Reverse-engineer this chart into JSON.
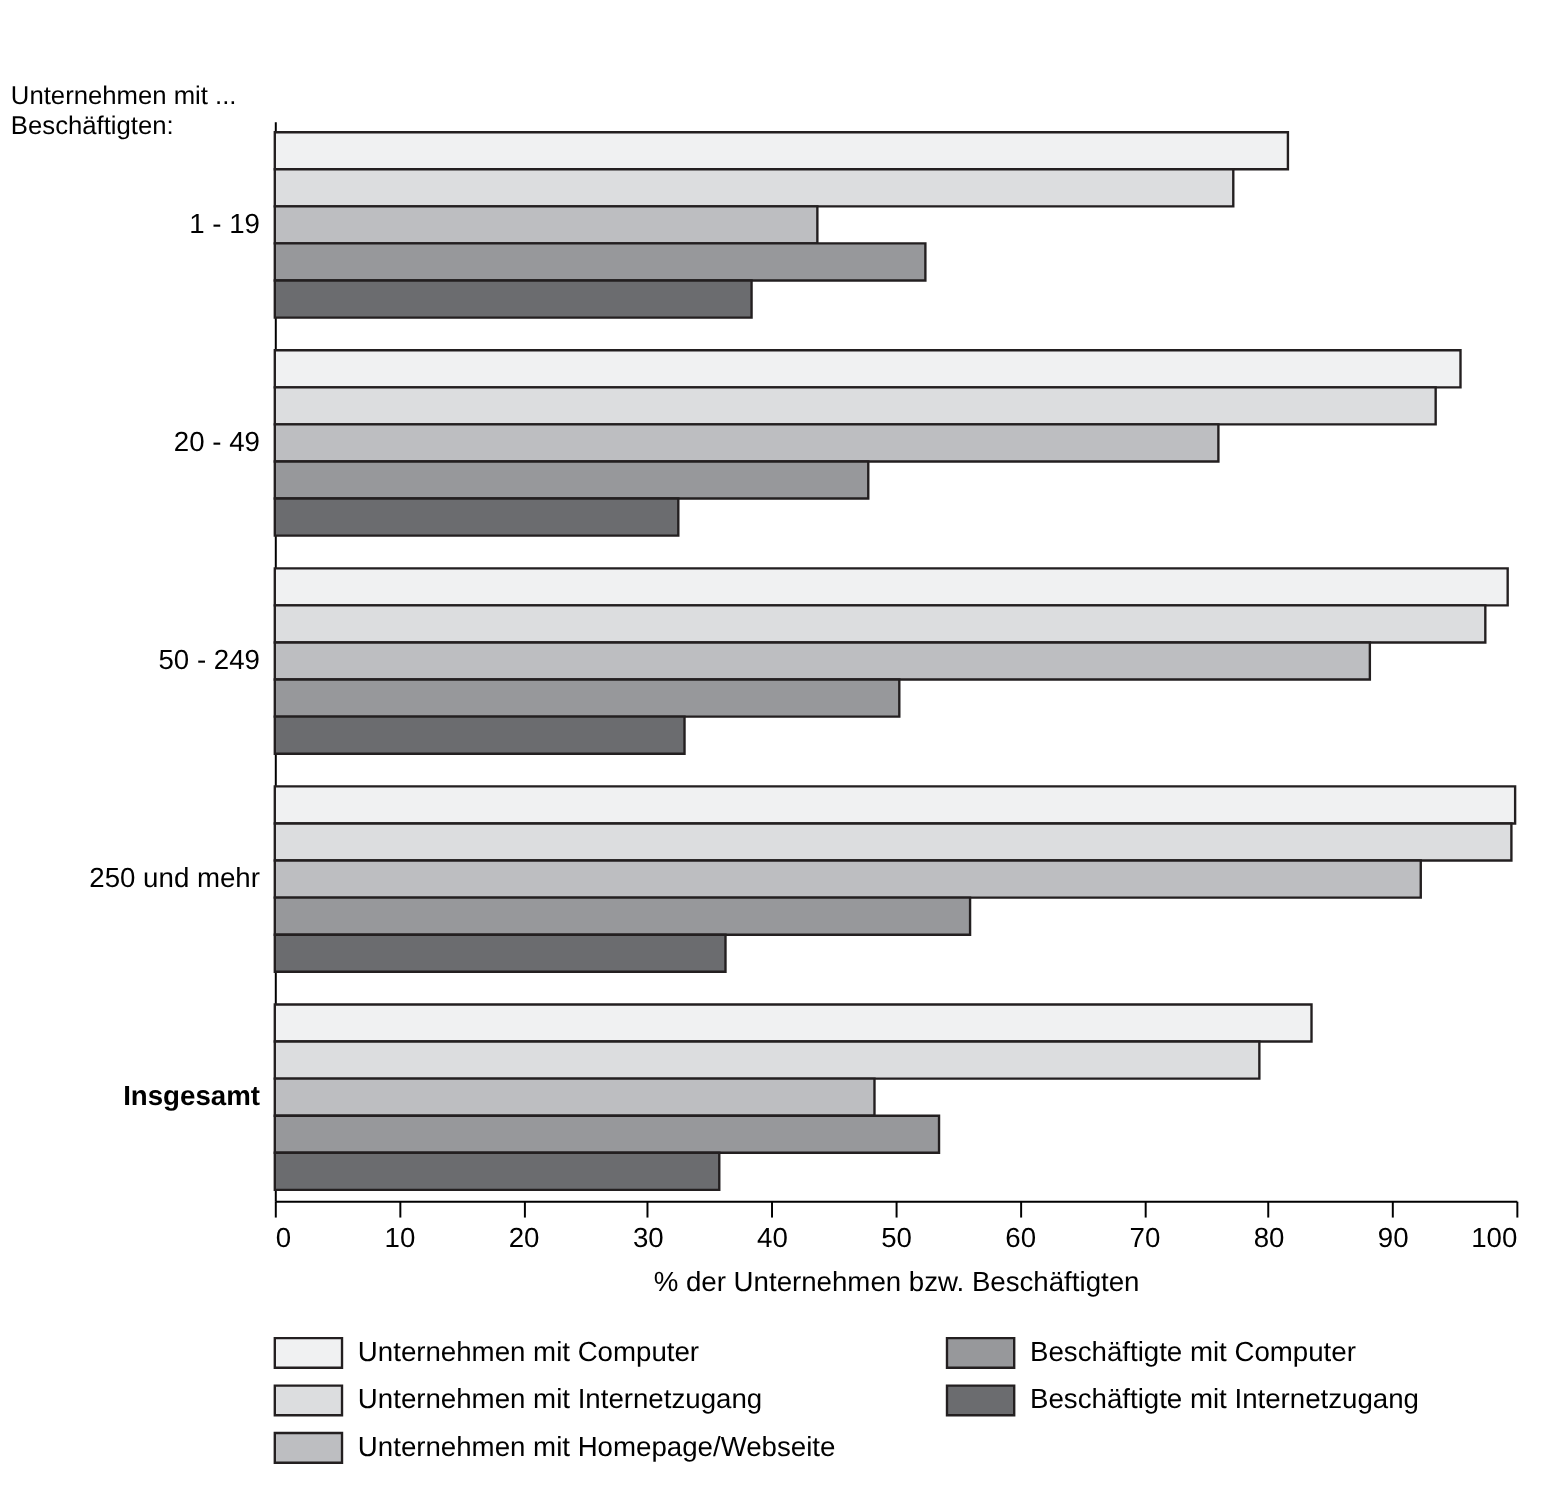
{
  "chart_data": {
    "type": "bar",
    "orientation": "horizontal",
    "ylabel": "Unternehmen mit ...\nBeschäftigten:",
    "xlabel": "% der Unternehmen bzw. Beschäftigten",
    "categories": [
      "1 -   19",
      "20 -   49",
      "50 - 249",
      "250 und mehr",
      "Insgesamt"
    ],
    "series": [
      {
        "name": "Unternehmen mit Computer",
        "color": "#f0f1f2",
        "values": [
          81.6,
          95.5,
          99.3,
          99.9,
          83.5
        ]
      },
      {
        "name": "Unternehmen mit Internetzugang",
        "color": "#dcdddf",
        "values": [
          77.2,
          93.5,
          97.5,
          99.6,
          79.3
        ]
      },
      {
        "name": "Unternehmen mit Homepage/Webseite",
        "color": "#bdbec1",
        "values": [
          43.7,
          76.0,
          88.2,
          92.3,
          48.3
        ]
      },
      {
        "name": "Beschäftigte mit Computer",
        "color": "#97989b",
        "values": [
          52.4,
          47.8,
          50.3,
          56.0,
          53.5
        ]
      },
      {
        "name": "Beschäftigte mit Internetzugang",
        "color": "#6b6c6f",
        "values": [
          38.4,
          32.5,
          33.0,
          36.3,
          35.8
        ]
      }
    ],
    "xlim": [
      0,
      100
    ],
    "xticks": [
      0,
      10,
      20,
      30,
      40,
      50,
      60,
      70,
      80,
      90,
      100
    ],
    "grid": false,
    "legend": "bottom"
  }
}
